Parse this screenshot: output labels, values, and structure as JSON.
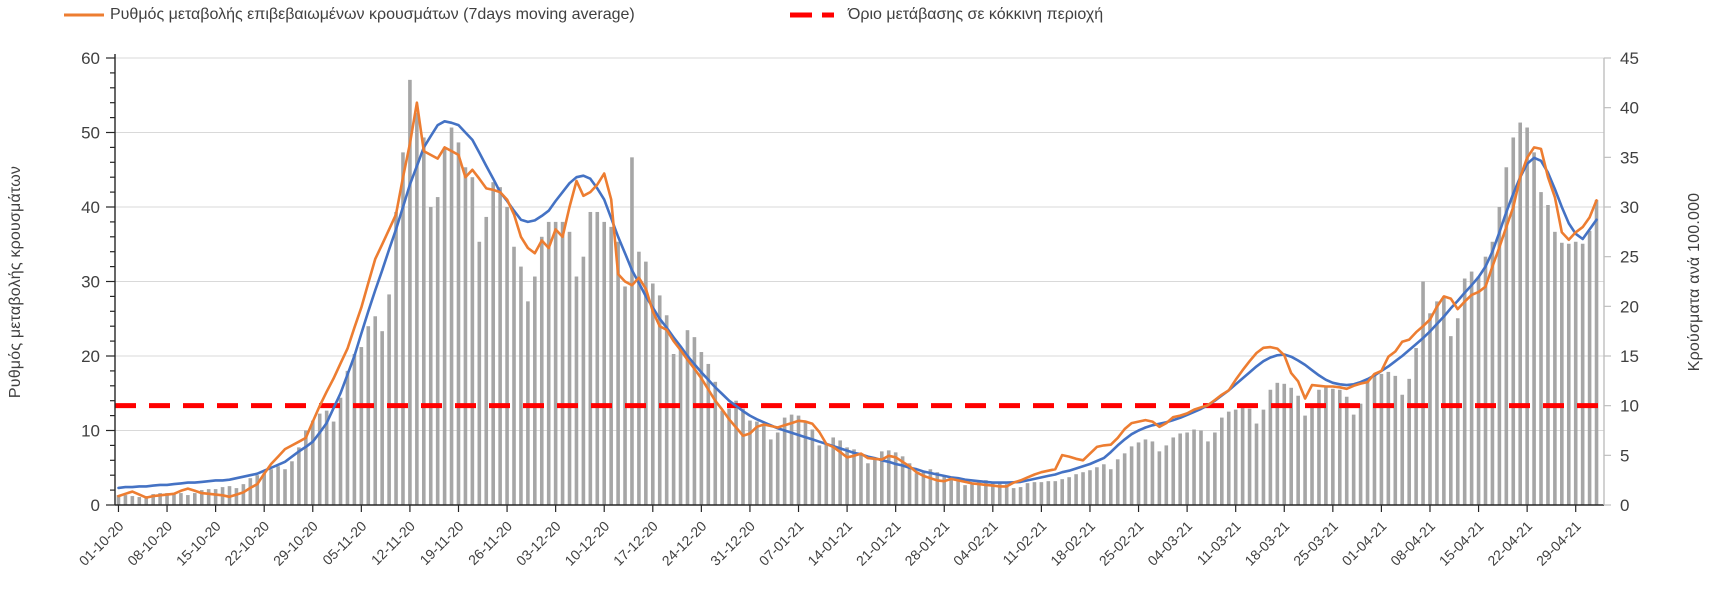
{
  "legend": [
    {
      "label": "Ρυθμός μεταβολής επιβεβαιωμένων κρουσμάτων (7days moving average)",
      "color": "#ED7D31",
      "style": "solid"
    },
    {
      "label": "Όριο μετάβασης σε κόκκινη περιοχή",
      "color": "#FF0000",
      "style": "dashed"
    }
  ],
  "colors": {
    "bars": "#A6A6A6",
    "moving_average_line": "#ED7D31",
    "trend_line": "#4472C4",
    "threshold_line": "#FF0000",
    "gridline": "#D9D9D9",
    "axis_line": "#262626",
    "right_axis_line": "#BFBFBF",
    "tick_text": "#404040"
  },
  "chart_data": {
    "type": "bar",
    "combo": [
      "bar",
      "line",
      "line",
      "threshold-hline"
    ],
    "n_points": 214,
    "x_tick_every_days": 7,
    "grid": "horizontal gridlines every 10 left-axis units, no vertical grid",
    "legend_position": "top",
    "left_axis": {
      "label": "Ρυθμός μεταβολής κρουσμάτων",
      "min": 0,
      "max": 60,
      "major_step": 10,
      "minor_step": 2,
      "ticks": [
        0,
        10,
        20,
        30,
        40,
        50,
        60
      ]
    },
    "right_axis": {
      "label": "Κρούσματα ανά 100.000",
      "min": 0,
      "max": 45,
      "major_step": 5,
      "ticks": [
        0,
        5,
        10,
        15,
        20,
        25,
        30,
        35,
        40,
        45
      ]
    },
    "x_tick_labels": [
      "01-10-20",
      "08-10-20",
      "15-10-20",
      "22-10-20",
      "29-10-20",
      "05-11-20",
      "12-11-20",
      "19-11-20",
      "26-11-20",
      "03-12-20",
      "10-12-20",
      "17-12-20",
      "24-12-20",
      "31-12-20",
      "07-01-21",
      "14-01-21",
      "21-01-21",
      "28-01-21",
      "04-02-21",
      "11-02-21",
      "18-02-21",
      "25-02-21",
      "04-03-21",
      "11-03-21",
      "18-03-21",
      "25-03-21",
      "01-04-21",
      "08-04-21",
      "15-04-21",
      "22-04-21",
      "29-04-21"
    ],
    "threshold": {
      "axis": "right",
      "value": 10,
      "left_axis_equivalent": 13.3,
      "label": "Όριο μετάβασης σε κόκκινη περιοχή"
    },
    "series": [
      {
        "name": "daily-cases-per-100k-bars",
        "type": "bar",
        "axis": "right",
        "color": "#A6A6A6",
        "values": [
          1.0,
          1.0,
          0.9,
          0.8,
          0.9,
          1.1,
          1.2,
          1.2,
          1.2,
          1.2,
          1.0,
          1.2,
          1.5,
          1.6,
          1.6,
          1.8,
          1.9,
          1.7,
          2.1,
          2.7,
          3.0,
          3.2,
          3.6,
          3.9,
          3.6,
          4.4,
          5.8,
          7.5,
          8.5,
          9.2,
          9.5,
          8.4,
          10.8,
          13.5,
          15.2,
          15.9,
          18.0,
          19.0,
          17.5,
          21.2,
          29.5,
          35.5,
          42.8,
          39.5,
          37.0,
          30.0,
          31.0,
          36.0,
          38.0,
          36.5,
          34.0,
          33.0,
          26.5,
          29.0,
          32.5,
          32.0,
          30.0,
          26.0,
          24.0,
          20.5,
          23.0,
          27.0,
          28.5,
          28.5,
          28.5,
          27.5,
          23.0,
          25.0,
          29.5,
          29.5,
          28.5,
          28.0,
          26.5,
          22.0,
          35.0,
          25.5,
          24.5,
          22.3,
          21.1,
          19.1,
          15.2,
          15.7,
          17.6,
          16.9,
          15.4,
          14.2,
          12.4,
          9.5,
          9.7,
          10.5,
          9.7,
          8.5,
          8.4,
          8.0,
          6.6,
          7.3,
          8.8,
          9.1,
          9.0,
          8.5,
          7.6,
          6.0,
          6.2,
          6.8,
          6.5,
          5.8,
          5.6,
          5.2,
          4.2,
          4.6,
          5.4,
          5.5,
          5.3,
          4.9,
          4.2,
          3.2,
          3.3,
          3.6,
          3.3,
          3.0,
          2.8,
          2.5,
          2.0,
          2.1,
          2.4,
          2.5,
          2.3,
          2.3,
          2.1,
          1.7,
          1.8,
          2.2,
          2.3,
          2.3,
          2.4,
          2.4,
          2.6,
          2.8,
          3.1,
          3.3,
          3.5,
          3.8,
          4.1,
          3.6,
          4.6,
          5.2,
          5.9,
          6.3,
          6.6,
          6.4,
          5.4,
          6.0,
          6.8,
          7.2,
          7.3,
          7.6,
          7.5,
          6.4,
          7.3,
          8.8,
          9.4,
          9.6,
          9.9,
          9.7,
          8.2,
          9.6,
          11.6,
          12.3,
          12.2,
          11.8,
          11.0,
          9.0,
          9.9,
          11.6,
          11.9,
          11.7,
          11.6,
          10.9,
          9.1,
          10.2,
          12.4,
          13.1,
          13.2,
          13.4,
          13.0,
          11.1,
          12.7,
          15.8,
          22.5,
          19.3,
          20.5,
          21.0,
          17.0,
          18.8,
          22.8,
          23.5,
          23.0,
          25.0,
          26.5,
          30.0,
          34.0,
          37.0,
          38.5,
          38.0,
          35.5,
          31.5,
          30.2,
          27.5,
          26.4,
          26.3,
          26.5,
          26.3,
          27.6,
          30.7
        ]
      },
      {
        "name": "rate-of-change-7day-moving-average",
        "type": "line",
        "axis": "left",
        "color": "#ED7D31",
        "values": [
          1.2,
          1.5,
          1.8,
          1.4,
          1.0,
          1.2,
          1.3,
          1.4,
          1.5,
          1.9,
          2.2,
          1.9,
          1.6,
          1.5,
          1.4,
          1.3,
          1.1,
          1.4,
          1.7,
          2.3,
          2.8,
          4.2,
          5.5,
          6.5,
          7.5,
          8.0,
          8.5,
          9.0,
          11.2,
          13.3,
          15.2,
          17.0,
          19.0,
          21.0,
          23.8,
          26.5,
          29.8,
          33.0,
          35.0,
          37.0,
          39.0,
          44.0,
          48.5,
          54.0,
          47.5,
          47.0,
          46.5,
          48.0,
          47.5,
          47.0,
          44.0,
          45.0,
          43.8,
          42.5,
          42.3,
          42.0,
          41.0,
          39.0,
          36.0,
          34.5,
          33.8,
          35.5,
          34.5,
          37.0,
          36.0,
          40.0,
          43.5,
          41.5,
          42.0,
          43.0,
          44.5,
          41.0,
          31.0,
          30.0,
          29.5,
          30.5,
          29.0,
          26.0,
          24.0,
          23.5,
          22.0,
          20.8,
          19.5,
          18.3,
          17.0,
          15.5,
          14.0,
          12.8,
          11.5,
          10.4,
          9.3,
          9.6,
          10.5,
          10.8,
          10.6,
          10.4,
          10.7,
          11.0,
          11.3,
          11.2,
          10.9,
          9.8,
          8.2,
          7.8,
          7.1,
          6.4,
          6.6,
          6.9,
          6.3,
          6.2,
          6.1,
          6.6,
          6.4,
          5.8,
          5.2,
          4.4,
          3.9,
          3.6,
          3.3,
          3.2,
          3.5,
          3.3,
          3.1,
          2.9,
          2.8,
          2.7,
          2.6,
          2.5,
          2.5,
          3.0,
          3.3,
          3.7,
          4.1,
          4.4,
          4.6,
          4.8,
          6.7,
          6.5,
          6.2,
          6.0,
          6.9,
          7.8,
          8.0,
          8.1,
          9.0,
          10.2,
          11.0,
          11.2,
          11.4,
          11.2,
          10.5,
          11.0,
          11.8,
          12.0,
          12.3,
          12.8,
          13.1,
          13.4,
          14.1,
          14.8,
          15.4,
          16.8,
          18.1,
          19.3,
          20.4,
          21.1,
          21.2,
          21.0,
          20.1,
          17.7,
          16.6,
          14.3,
          16.1,
          16.0,
          15.9,
          15.9,
          15.8,
          15.6,
          16.0,
          16.3,
          16.5,
          17.6,
          18.0,
          19.9,
          20.6,
          21.9,
          22.2,
          23.2,
          24.0,
          24.9,
          26.6,
          28.0,
          27.7,
          26.3,
          27.3,
          28.2,
          28.6,
          29.3,
          32.0,
          34.6,
          37.3,
          40.0,
          44.0,
          46.6,
          48.0,
          47.8,
          44.0,
          41.3,
          36.6,
          35.6,
          36.6,
          37.3,
          38.6,
          40.9
        ]
      },
      {
        "name": "smoothed-trend-line",
        "type": "line",
        "axis": "left",
        "color": "#4472C4",
        "values": [
          2.3,
          2.4,
          2.4,
          2.5,
          2.5,
          2.6,
          2.7,
          2.7,
          2.8,
          2.9,
          3.0,
          3.0,
          3.1,
          3.2,
          3.3,
          3.3,
          3.4,
          3.6,
          3.8,
          4.0,
          4.2,
          4.6,
          5.0,
          5.4,
          5.8,
          6.5,
          7.2,
          7.8,
          8.5,
          9.7,
          11.0,
          13.0,
          15.0,
          17.5,
          20.0,
          23.0,
          26.0,
          28.8,
          31.5,
          34.3,
          37.0,
          40.0,
          43.0,
          45.5,
          48.0,
          49.5,
          51.0,
          51.5,
          51.3,
          51.0,
          50.0,
          49.0,
          47.3,
          45.5,
          43.8,
          42.0,
          40.8,
          39.5,
          38.3,
          38.0,
          38.2,
          38.8,
          39.5,
          40.8,
          42.0,
          43.2,
          44.0,
          44.2,
          43.8,
          42.5,
          41.0,
          38.5,
          36.0,
          33.8,
          31.5,
          29.8,
          28.0,
          26.5,
          25.0,
          23.8,
          22.5,
          21.3,
          20.0,
          18.9,
          17.8,
          16.8,
          15.8,
          14.9,
          14.0,
          13.3,
          12.6,
          12.0,
          11.5,
          11.1,
          10.7,
          10.3,
          10.0,
          9.7,
          9.4,
          9.1,
          8.8,
          8.5,
          8.2,
          7.9,
          7.6,
          7.3,
          7.0,
          6.8,
          6.5,
          6.3,
          6.0,
          5.8,
          5.5,
          5.3,
          5.0,
          4.8,
          4.5,
          4.3,
          4.1,
          3.9,
          3.7,
          3.6,
          3.4,
          3.3,
          3.2,
          3.1,
          3.0,
          3.0,
          3.0,
          3.05,
          3.1,
          3.3,
          3.5,
          3.7,
          3.9,
          4.1,
          4.4,
          4.6,
          4.9,
          5.2,
          5.5,
          5.9,
          6.3,
          7.1,
          8.0,
          8.8,
          9.5,
          10.0,
          10.4,
          10.7,
          10.9,
          11.1,
          11.4,
          11.7,
          12.1,
          12.5,
          12.9,
          13.4,
          14.0,
          14.7,
          15.4,
          16.2,
          17.0,
          17.8,
          18.6,
          19.3,
          19.8,
          20.1,
          20.2,
          19.9,
          19.4,
          18.8,
          18.1,
          17.4,
          16.8,
          16.4,
          16.2,
          16.1,
          16.2,
          16.5,
          16.9,
          17.4,
          18.0,
          18.6,
          19.3,
          20.0,
          20.8,
          21.6,
          22.4,
          23.3,
          24.3,
          25.3,
          26.4,
          27.4,
          28.5,
          29.5,
          30.6,
          32.0,
          34.0,
          36.6,
          39.3,
          41.8,
          44.0,
          45.8,
          46.6,
          46.2,
          44.6,
          42.4,
          40.0,
          37.8,
          36.4,
          35.7,
          37.0,
          38.3
        ]
      }
    ]
  }
}
